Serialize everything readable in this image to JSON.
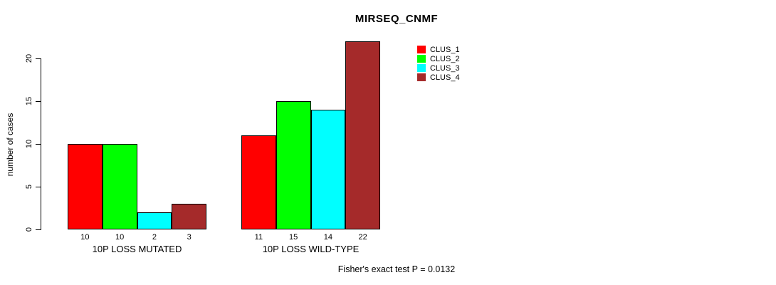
{
  "title": "MIRSEQ_CNMF",
  "footer": "Fisher's exact test P = 0.0132",
  "chart_data": {
    "type": "bar",
    "title": "MIRSEQ_CNMF",
    "ylabel": "number of cases",
    "xlabel": "",
    "categories": [
      "10P LOSS MUTATED",
      "10P LOSS WILD-TYPE"
    ],
    "series": [
      {
        "name": "CLUS_1",
        "color": "#ff0000",
        "values": [
          10,
          11
        ]
      },
      {
        "name": "CLUS_2",
        "color": "#00ff00",
        "values": [
          10,
          15
        ]
      },
      {
        "name": "CLUS_3",
        "color": "#00ffff",
        "values": [
          2,
          14
        ]
      },
      {
        "name": "CLUS_4",
        "color": "#a52a2a",
        "values": [
          3,
          22
        ]
      }
    ],
    "bar_value_labels": [
      [
        "10",
        "10",
        "2",
        "3"
      ],
      [
        "11",
        "15",
        "14",
        "22"
      ]
    ],
    "yticks": [
      0,
      5,
      10,
      15,
      20
    ],
    "ylim": [
      0,
      22
    ],
    "grid": false,
    "legend_position": "top-right",
    "annotation": "Fisher's exact test P = 0.0132"
  }
}
